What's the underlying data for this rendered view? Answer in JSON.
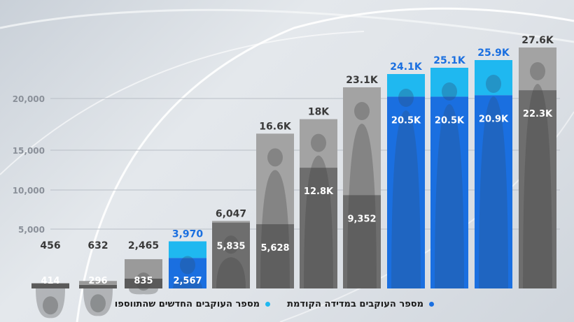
{
  "chart_data": {
    "type": "bar",
    "stacked": true,
    "title": "",
    "xlabel": "",
    "ylabel": "",
    "yticks": [
      5000,
      10000,
      15000,
      20000
    ],
    "ytick_labels": [
      "5,000",
      "10,000",
      "15,000",
      "20,000"
    ],
    "grid": true,
    "legend_position": "bottom",
    "legend": [
      {
        "label": "מספר העוקבים במדידה הקודמת",
        "color": "#1a6fe0"
      },
      {
        "label": "מספר העוקבים החדשים שהתווספו",
        "color": "#1fb8f0"
      }
    ],
    "series_values": {
      "inner": [
        414,
        296,
        835,
        2567,
        5835,
        5628,
        12800,
        9352,
        20500,
        20500,
        20900,
        22300
      ],
      "total": [
        456,
        632,
        2465,
        3970,
        6047,
        16600,
        18000,
        23100,
        24100,
        25100,
        25900,
        27600
      ]
    },
    "inner_labels": [
      "414",
      "296",
      "835",
      "2,567",
      "5,835",
      "5,628",
      "12.8K",
      "9,352",
      "20.5K",
      "20.5K",
      "20.9K",
      "22.3K"
    ],
    "total_labels": [
      "456",
      "632",
      "2,465",
      "3,970",
      "6,047",
      "16.6K",
      "18K",
      "23.1K",
      "24.1K",
      "25.1K",
      "25.9K",
      "27.6K"
    ],
    "highlighted": [
      false,
      false,
      false,
      true,
      false,
      false,
      false,
      false,
      true,
      true,
      true,
      false
    ],
    "colors": {
      "gray": "#8c8c8c",
      "dark_gray": "#5a5a5a",
      "blue": "#1a6fe0",
      "cyan": "#1fb8f0",
      "highlight_label": "#1a6fe0",
      "label": "#3a3a3a"
    }
  }
}
